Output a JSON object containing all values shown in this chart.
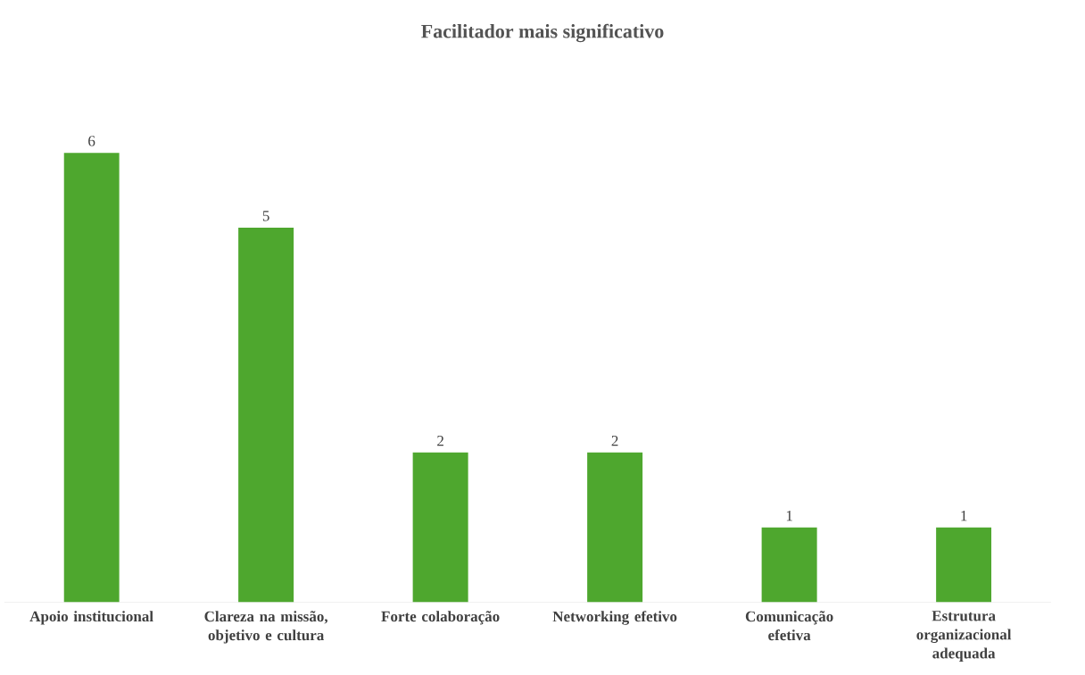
{
  "chart_data": {
    "type": "bar",
    "title": "Facilitador mais significativo",
    "categories": [
      "Apoio institucional",
      "Clareza na missão, objetivo e cultura",
      "Forte colaboração",
      "Networking efetivo",
      "Comunicação efetiva",
      "Estrutura organizacional adequada"
    ],
    "values": [
      6,
      5,
      2,
      2,
      1,
      1
    ],
    "color": "#4ea72e",
    "data_labels": true
  }
}
